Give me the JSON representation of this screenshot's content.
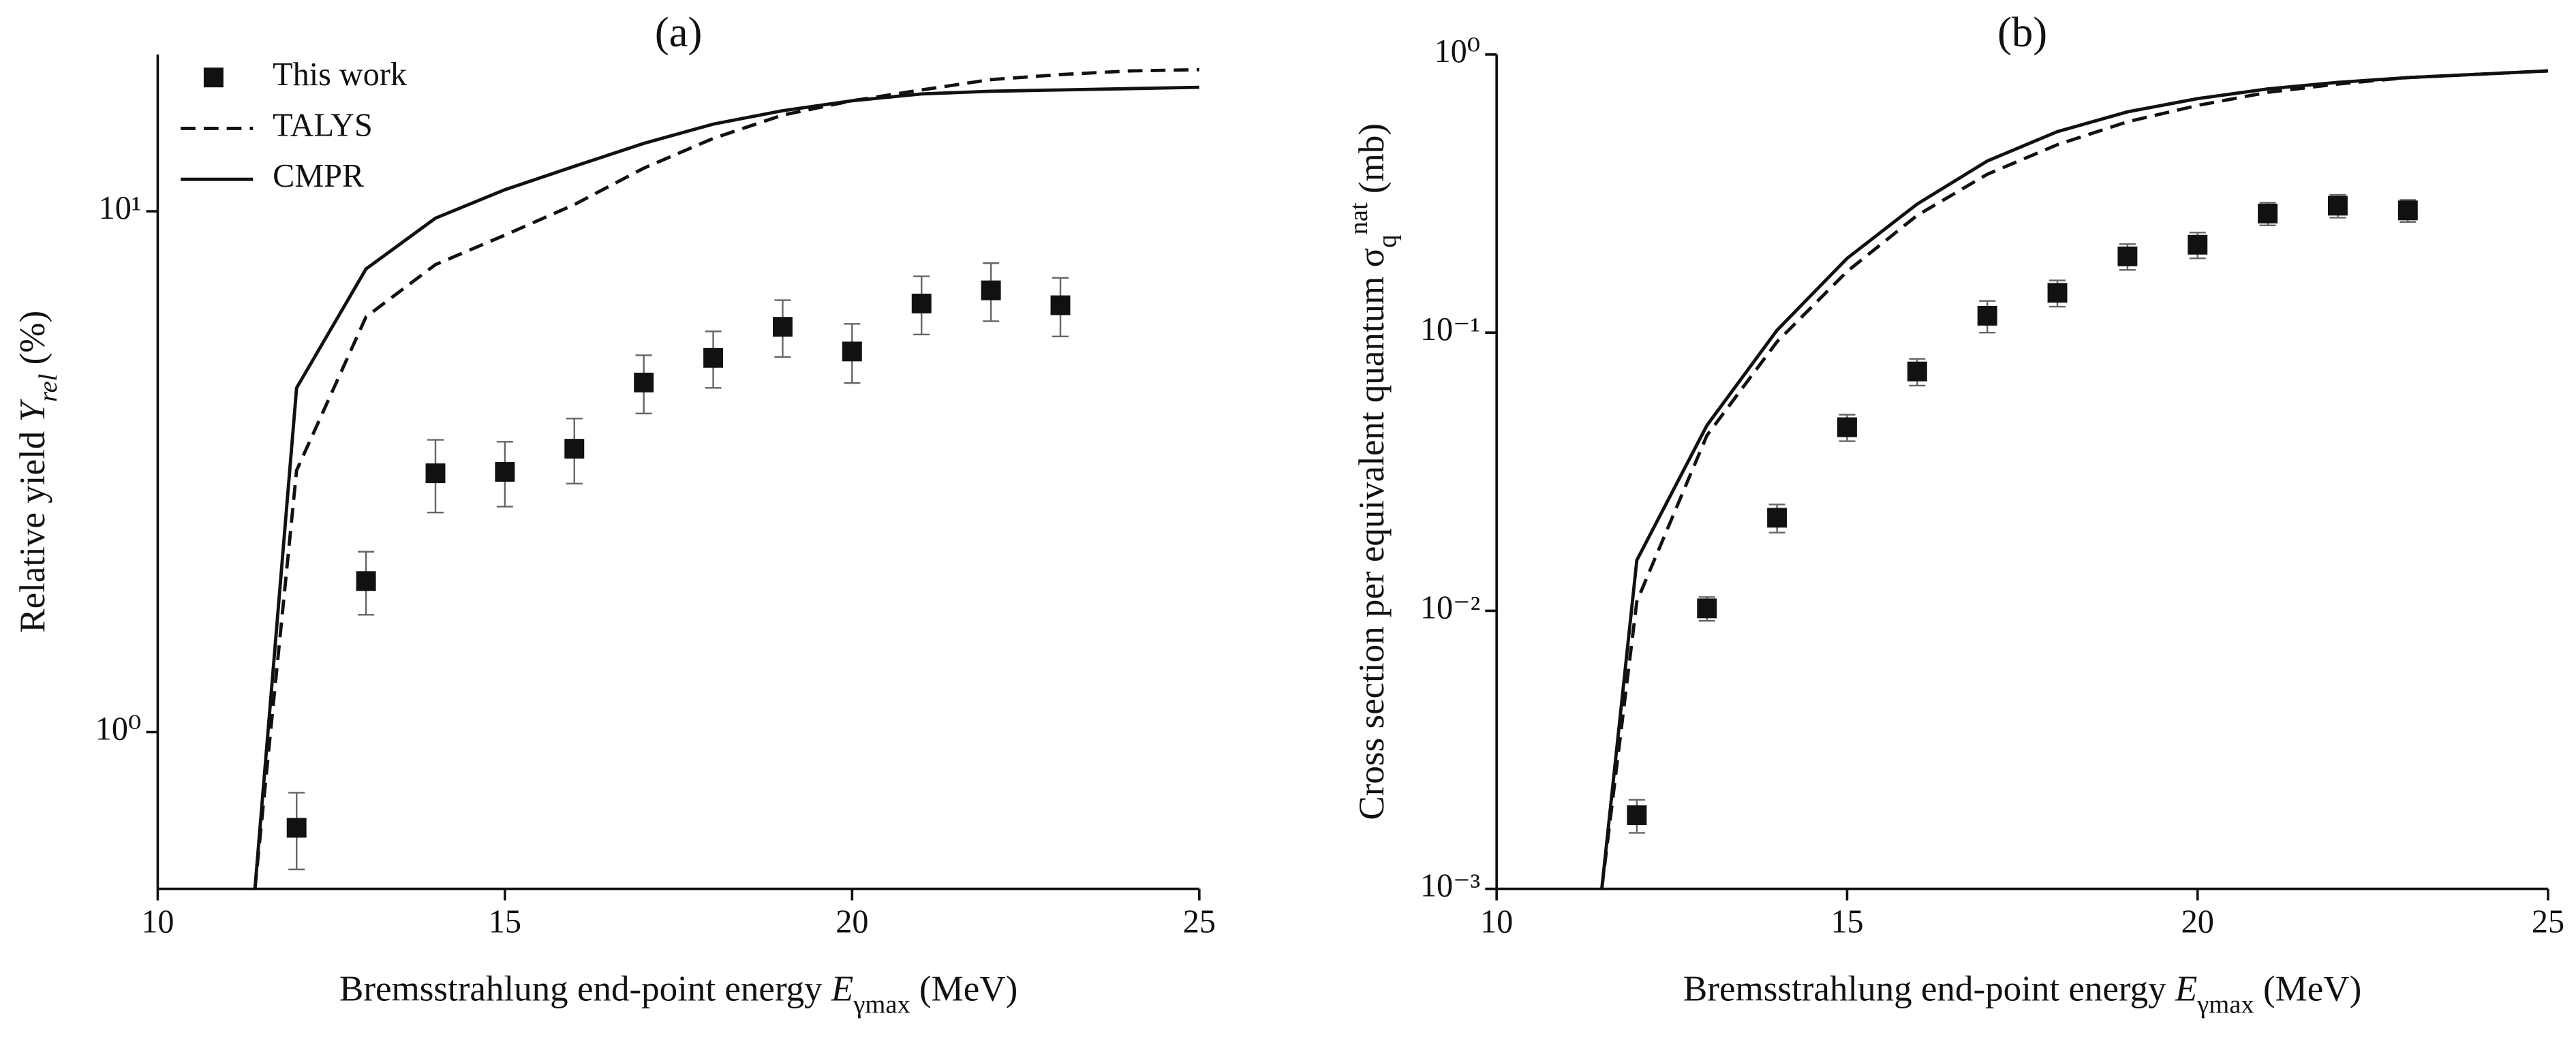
{
  "chart_data": [
    {
      "type": "scatter-line",
      "title": "(a)",
      "xlabel": [
        {
          "text": "Bremsstrahlung end-point energy ",
          "style": "normal"
        },
        {
          "text": "E",
          "style": "italic"
        },
        {
          "text": "γmax",
          "style": "sub"
        },
        {
          "text": " (MeV)",
          "style": "normal"
        }
      ],
      "ylabel": [
        {
          "text": "Relative yield ",
          "style": "normal"
        },
        {
          "text": "Y",
          "style": "italic"
        },
        {
          "text": "rel",
          "style": "italic-sub"
        },
        {
          "text": " (%)",
          "style": "normal"
        }
      ],
      "xlim": [
        10,
        25
      ],
      "xticks": [
        10,
        15,
        20,
        25
      ],
      "ylim": [
        0.5,
        20
      ],
      "yscale": "log",
      "yticks": [
        {
          "value": 1,
          "label": "10⁰"
        },
        {
          "value": 10,
          "label": "10¹"
        }
      ],
      "legend": "upper left",
      "series": [
        {
          "name": "This work",
          "color": "#111111",
          "marker": "square",
          "linestyle": "none",
          "x": [
            12,
            13,
            14,
            15,
            16,
            17,
            18,
            19,
            20,
            21,
            22,
            23
          ],
          "values": [
            0.655,
            1.95,
            3.14,
            3.16,
            3.5,
            4.69,
            5.23,
            6.0,
            5.38,
            6.65,
            7.05,
            6.6
          ],
          "errors": [
            0.11,
            0.27,
            0.5,
            0.45,
            0.5,
            0.6,
            0.65,
            0.75,
            0.7,
            0.85,
            0.9,
            0.85
          ]
        },
        {
          "name": "TALYS",
          "color": "#111111",
          "marker": "none",
          "linestyle": "dashed",
          "x": [
            11.4,
            12,
            13,
            14,
            15,
            16,
            17,
            18,
            19,
            20,
            21,
            22,
            23,
            24,
            25
          ],
          "values": [
            0.5,
            3.18,
            6.27,
            7.9,
            9.0,
            10.3,
            12.1,
            13.8,
            15.3,
            16.3,
            17.1,
            17.9,
            18.3,
            18.6,
            18.7
          ]
        },
        {
          "name": "CMPR",
          "color": "#111111",
          "marker": "none",
          "linestyle": "solid",
          "x": [
            11.4,
            12,
            13,
            14,
            15,
            16,
            17,
            18,
            19,
            20,
            21,
            22,
            23,
            24,
            25
          ],
          "values": [
            0.5,
            4.58,
            7.75,
            9.7,
            11.0,
            12.2,
            13.5,
            14.7,
            15.6,
            16.3,
            16.8,
            17.0,
            17.1,
            17.2,
            17.3
          ]
        }
      ]
    },
    {
      "type": "scatter-line",
      "title": "(b)",
      "xlabel": [
        {
          "text": "Bremsstrahlung end-point energy ",
          "style": "normal"
        },
        {
          "text": "E",
          "style": "italic"
        },
        {
          "text": "γmax",
          "style": "sub"
        },
        {
          "text": " (MeV)",
          "style": "normal"
        }
      ],
      "ylabel": [
        {
          "text": "Cross section per equivalent quantum ",
          "style": "normal"
        },
        {
          "text": "σ",
          "style": "normal"
        },
        {
          "text": "q",
          "style": "sub"
        },
        {
          "text": "nat",
          "style": "sup"
        },
        {
          "text": " (mb)",
          "style": "normal"
        }
      ],
      "xlim": [
        10,
        25
      ],
      "xticks": [
        10,
        15,
        20,
        25
      ],
      "ylim": [
        0.001,
        1
      ],
      "yscale": "log",
      "yticks": [
        {
          "value": 0.001,
          "label": "10⁻³"
        },
        {
          "value": 0.01,
          "label": "10⁻²"
        },
        {
          "value": 0.1,
          "label": "10⁻¹"
        },
        {
          "value": 1,
          "label": "10⁰"
        }
      ],
      "series": [
        {
          "color": "#111111",
          "marker": "square",
          "linestyle": "none",
          "x": [
            12,
            13,
            14,
            15,
            16,
            17,
            18,
            19,
            20,
            21,
            22,
            23
          ],
          "values": [
            0.00184,
            0.0102,
            0.0216,
            0.0457,
            0.0725,
            0.115,
            0.139,
            0.188,
            0.207,
            0.268,
            0.286,
            0.275
          ],
          "errors": [
            0.00025,
            0.001,
            0.0025,
            0.005,
            0.008,
            0.015,
            0.015,
            0.02,
            0.022,
            0.025,
            0.027,
            0.025
          ]
        },
        {
          "color": "#111111",
          "marker": "none",
          "linestyle": "dashed",
          "x": [
            11.5,
            12,
            13,
            14,
            15,
            16,
            17,
            18,
            19,
            20,
            21,
            22,
            23,
            24,
            25
          ],
          "values": [
            0.001,
            0.0108,
            0.0427,
            0.0927,
            0.166,
            0.264,
            0.371,
            0.474,
            0.573,
            0.656,
            0.731,
            0.783,
            0.826,
            0.849,
            0.873
          ]
        },
        {
          "color": "#111111",
          "marker": "none",
          "linestyle": "solid",
          "x": [
            11.5,
            12,
            13,
            14,
            15,
            16,
            17,
            18,
            19,
            20,
            21,
            22,
            23,
            24,
            25
          ],
          "values": [
            0.001,
            0.0152,
            0.0464,
            0.102,
            0.185,
            0.29,
            0.414,
            0.528,
            0.622,
            0.694,
            0.752,
            0.794,
            0.826,
            0.849,
            0.873
          ]
        }
      ]
    }
  ]
}
